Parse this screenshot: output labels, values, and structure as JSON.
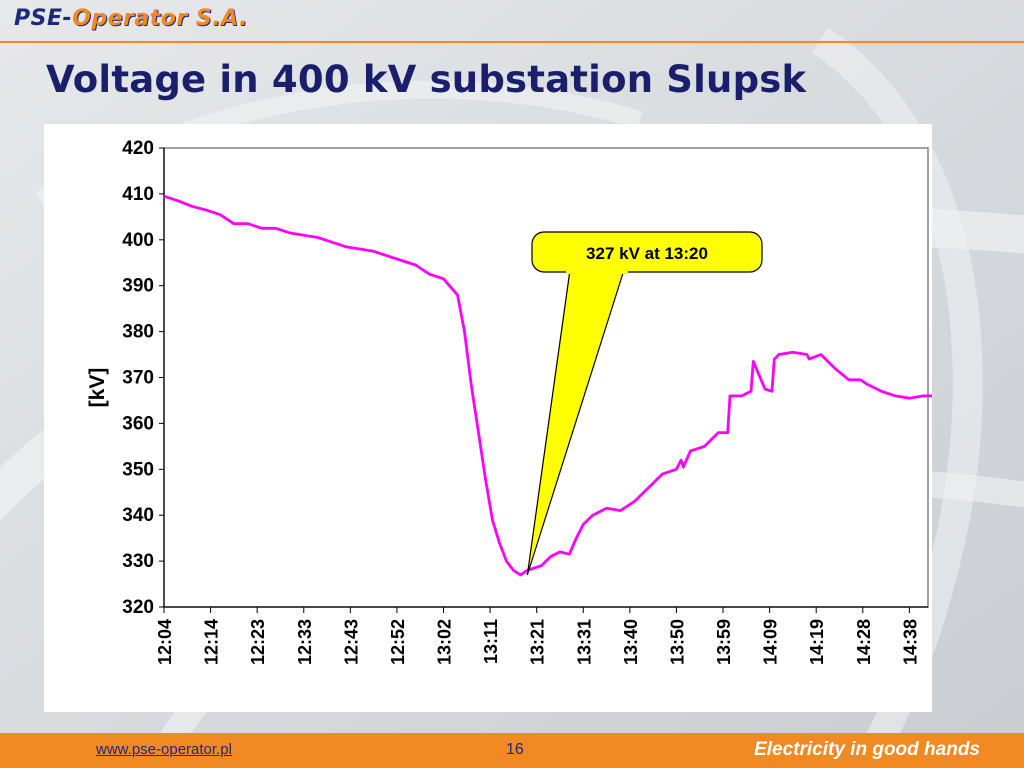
{
  "header": {
    "logo_pse": "PSE-",
    "logo_operator": "Operator S.A.",
    "title": "Voltage in 400 kV substation Slupsk"
  },
  "footer": {
    "url": "www.pse-operator.pl",
    "page_number": "16",
    "slogan": "Electricity in good hands"
  },
  "colors": {
    "accent": "#f28a24",
    "title": "#1a1f6b",
    "series": "#ff00ff",
    "callout": "#ffff00"
  },
  "chart_data": {
    "type": "line",
    "title": "",
    "ylabel": "[kV]",
    "xlabel": "",
    "ylim": [
      320,
      420
    ],
    "yticks": [
      320,
      330,
      340,
      350,
      360,
      370,
      380,
      390,
      400,
      410,
      420
    ],
    "xtick_labels": [
      "12:04",
      "12:14",
      "12:23",
      "12:33",
      "12:43",
      "12:52",
      "13:02",
      "13:11",
      "13:21",
      "13:31",
      "13:40",
      "13:50",
      "13:59",
      "14:09",
      "14:19",
      "14:28",
      "14:38"
    ],
    "grid": false,
    "legend": "none",
    "annotation": {
      "text": "327 kV at 13:20",
      "x": 7.8,
      "y": 327
    },
    "series": [
      {
        "x": [
          0,
          0.3,
          0.6,
          0.9,
          1.2,
          1.5,
          1.8,
          2.1,
          2.4,
          2.7,
          3.0,
          3.3,
          3.6,
          3.9,
          4.2,
          4.5,
          4.8,
          5.1,
          5.4,
          5.7,
          6.0,
          6.3,
          6.45,
          6.6,
          6.75,
          6.9,
          7.05,
          7.2,
          7.35,
          7.5,
          7.65,
          7.8,
          7.95,
          8.1,
          8.3,
          8.5,
          8.7,
          8.85,
          9.0,
          9.2,
          9.5,
          9.8,
          10.1,
          10.4,
          10.7,
          11.0,
          11.1,
          11.15,
          11.3,
          11.6,
          11.9,
          12.1,
          12.15,
          12.4,
          12.6,
          12.65,
          12.9,
          13.05,
          13.1,
          13.2,
          13.5,
          13.8,
          13.85,
          14.1,
          14.4,
          14.7,
          14.95,
          15.1,
          15.4,
          15.7,
          16.0,
          16.3,
          16.7
        ],
        "y": [
          409.5,
          408.5,
          407.3,
          406.5,
          405.5,
          403.5,
          403.5,
          402.5,
          402.5,
          401.5,
          401.0,
          400.5,
          399.5,
          398.5,
          398.0,
          397.5,
          396.5,
          395.5,
          394.5,
          392.5,
          391.5,
          388.0,
          380.0,
          368.0,
          358.0,
          348.0,
          339.0,
          334.0,
          330.0,
          328.0,
          327.0,
          328.0,
          328.5,
          329.0,
          331.0,
          332.0,
          331.5,
          335.0,
          338.0,
          340.0,
          341.5,
          341.0,
          343.0,
          346.0,
          349.0,
          350.0,
          352.0,
          350.5,
          354.0,
          355.0,
          358.0,
          358.0,
          366.0,
          366.0,
          367.0,
          373.5,
          367.5,
          367.0,
          374.0,
          375.0,
          375.5,
          375.0,
          374.0,
          375.0,
          372.0,
          369.5,
          369.5,
          368.5,
          367.0,
          366.0,
          365.5,
          366.0,
          366.0
        ]
      }
    ]
  }
}
